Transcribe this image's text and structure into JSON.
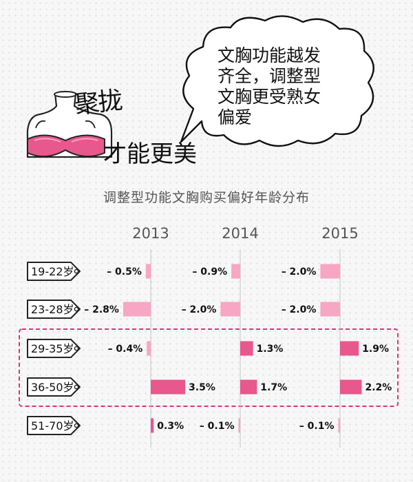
{
  "headline": {
    "line1": "聚拢",
    "line2": "才能更美"
  },
  "bubble": {
    "lines": [
      "文胸功能越发",
      "齐全，调整型",
      "文胸更受熟女",
      "偏爱"
    ]
  },
  "colors": {
    "negative": "#f7a6c3",
    "positive": "#e8578d",
    "highlight_border": "#e0307a",
    "axis": "#cccccc"
  },
  "chart_data": {
    "type": "bar",
    "title": "调整型功能文胸购买偏好年龄分布",
    "groups": [
      "2013",
      "2014",
      "2015"
    ],
    "categories": [
      "19-22岁",
      "23-28岁",
      "29-35岁",
      "36-50岁",
      "51-70岁"
    ],
    "series": [
      {
        "name": "2013",
        "values": [
          -0.5,
          -2.8,
          -0.4,
          3.5,
          0.3
        ],
        "labels": [
          "– 0.5%",
          "– 2.8%",
          "– 0.4%",
          "3.5%",
          "0.3%"
        ]
      },
      {
        "name": "2014",
        "values": [
          -0.9,
          -2.0,
          1.3,
          1.7,
          -0.1
        ],
        "labels": [
          "– 0.9%",
          "– 2.0%",
          "1.3%",
          "1.7%",
          "– 0.1%"
        ]
      },
      {
        "name": "2015",
        "values": [
          -2.0,
          -2.0,
          1.9,
          2.2,
          -0.1
        ],
        "labels": [
          "– 2.0%",
          "– 2.0%",
          "1.9%",
          "2.2%",
          "– 0.1%"
        ]
      }
    ],
    "highlighted_categories": [
      "29-35岁",
      "36-50岁"
    ]
  }
}
